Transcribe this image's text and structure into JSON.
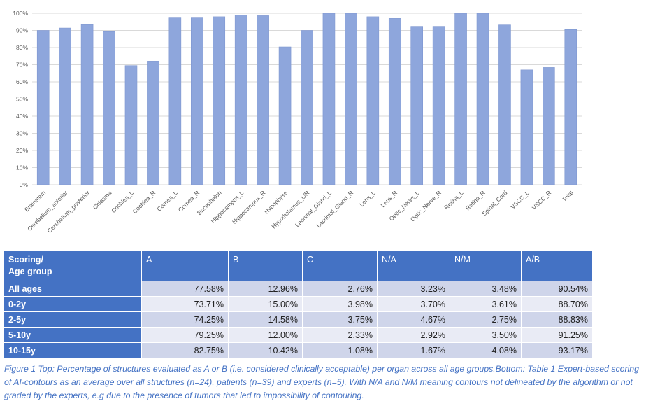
{
  "chart_data": {
    "type": "bar",
    "title": "",
    "xlabel": "",
    "ylabel": "",
    "ylim": [
      0,
      100
    ],
    "yticks": [
      "0%",
      "10%",
      "20%",
      "30%",
      "40%",
      "50%",
      "60%",
      "70%",
      "80%",
      "90%",
      "100%"
    ],
    "grid": true,
    "legend": "none",
    "bar_color": "#8ea6dc",
    "categories": [
      "Brainstem",
      "Cerebellum_anterior",
      "Cerebellum_posterior",
      "Chiasma",
      "Cochlea_L",
      "Cochlea_R",
      "Cornea_L",
      "Cornea_R",
      "Encephalon",
      "Hippocampus_L",
      "Hippocampus_R",
      "Hypophyse",
      "Hypothalamus_L/R",
      "Lacrimal_Gland_L",
      "Lacrimal_Gland_R",
      "Lens_L",
      "Lens_R",
      "Optic_Nerve_L",
      "Optic_Nerve_R",
      "Retina_L",
      "Retina_R",
      "Spinal_Cord",
      "VSCC_L",
      "VSCC_R",
      "Total"
    ],
    "values": [
      90.0,
      91.4,
      93.4,
      89.3,
      69.5,
      72.1,
      97.3,
      97.3,
      98.0,
      98.9,
      98.6,
      80.4,
      90.0,
      100,
      100,
      98.0,
      97.0,
      92.4,
      92.4,
      100,
      100,
      93.2,
      67.0,
      68.4,
      90.5
    ]
  },
  "table": {
    "header": [
      "Scoring/\nAge group",
      "A",
      "B",
      "C",
      "N/A",
      "N/M",
      "A/B"
    ],
    "rows": [
      {
        "label": "All ages",
        "values": [
          "77.58%",
          "12.96%",
          "2.76%",
          "3.23%",
          "3.48%",
          "90.54%"
        ]
      },
      {
        "label": "0-2y",
        "values": [
          "73.71%",
          "15.00%",
          "3.98%",
          "3.70%",
          "3.61%",
          "88.70%"
        ]
      },
      {
        "label": "2-5y",
        "values": [
          "74.25%",
          "14.58%",
          "3.75%",
          "4.67%",
          "2.75%",
          "88.83%"
        ]
      },
      {
        "label": "5-10y",
        "values": [
          "79.25%",
          "12.00%",
          "2.33%",
          "2.92%",
          "3.50%",
          "91.25%"
        ]
      },
      {
        "label": "10-15y",
        "values": [
          "82.75%",
          "10.42%",
          "1.08%",
          "1.67%",
          "4.08%",
          "93.17%"
        ]
      }
    ]
  },
  "caption": "Figure 1 Top: Percentage of structures evaluated as A or B (i.e. considered clinically acceptable) per organ across all age groups.Bottom: Table 1 Expert-based scoring of AI-contours as an average over all structures (n=24), patients (n=39) and experts (n=5). With N/A and N/M meaning contours not delineated by the algorithm or not graded by the experts, e.g due to the presence of tumors that led to impossibility of contouring.",
  "colors": {
    "header_bg": "#4472c4",
    "row_odd": "#cfd5ea",
    "row_even": "#e9ebf5",
    "grid": "#d9d9d9",
    "caption_text": "#4472c4"
  }
}
